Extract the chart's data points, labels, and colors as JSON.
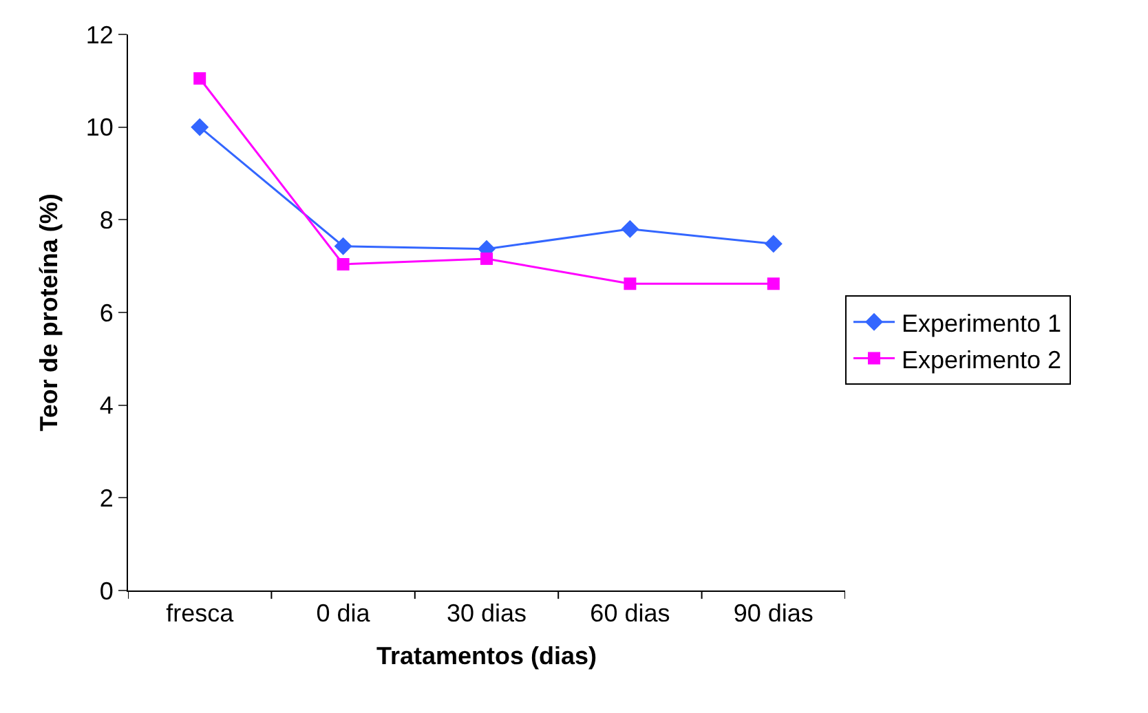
{
  "chart_data": {
    "type": "line",
    "xlabel": "Tratamentos (dias)",
    "ylabel": "Teor de proteína (%)",
    "categories": [
      "fresca",
      "0 dia",
      "30 dias",
      "60 dias",
      "90 dias"
    ],
    "series": [
      {
        "name": "Experimento 1",
        "color": "#3366ff",
        "marker": "diamond",
        "values": [
          10.0,
          7.43,
          7.37,
          7.8,
          7.48
        ]
      },
      {
        "name": "Experimento 2",
        "color": "#ff00ff",
        "marker": "square",
        "values": [
          11.05,
          7.04,
          7.16,
          6.62,
          6.62
        ]
      }
    ],
    "ylim": [
      0,
      12
    ],
    "yticks": [
      0,
      2,
      4,
      6,
      8,
      10,
      12
    ],
    "legend": "right",
    "line_style": "solid"
  }
}
